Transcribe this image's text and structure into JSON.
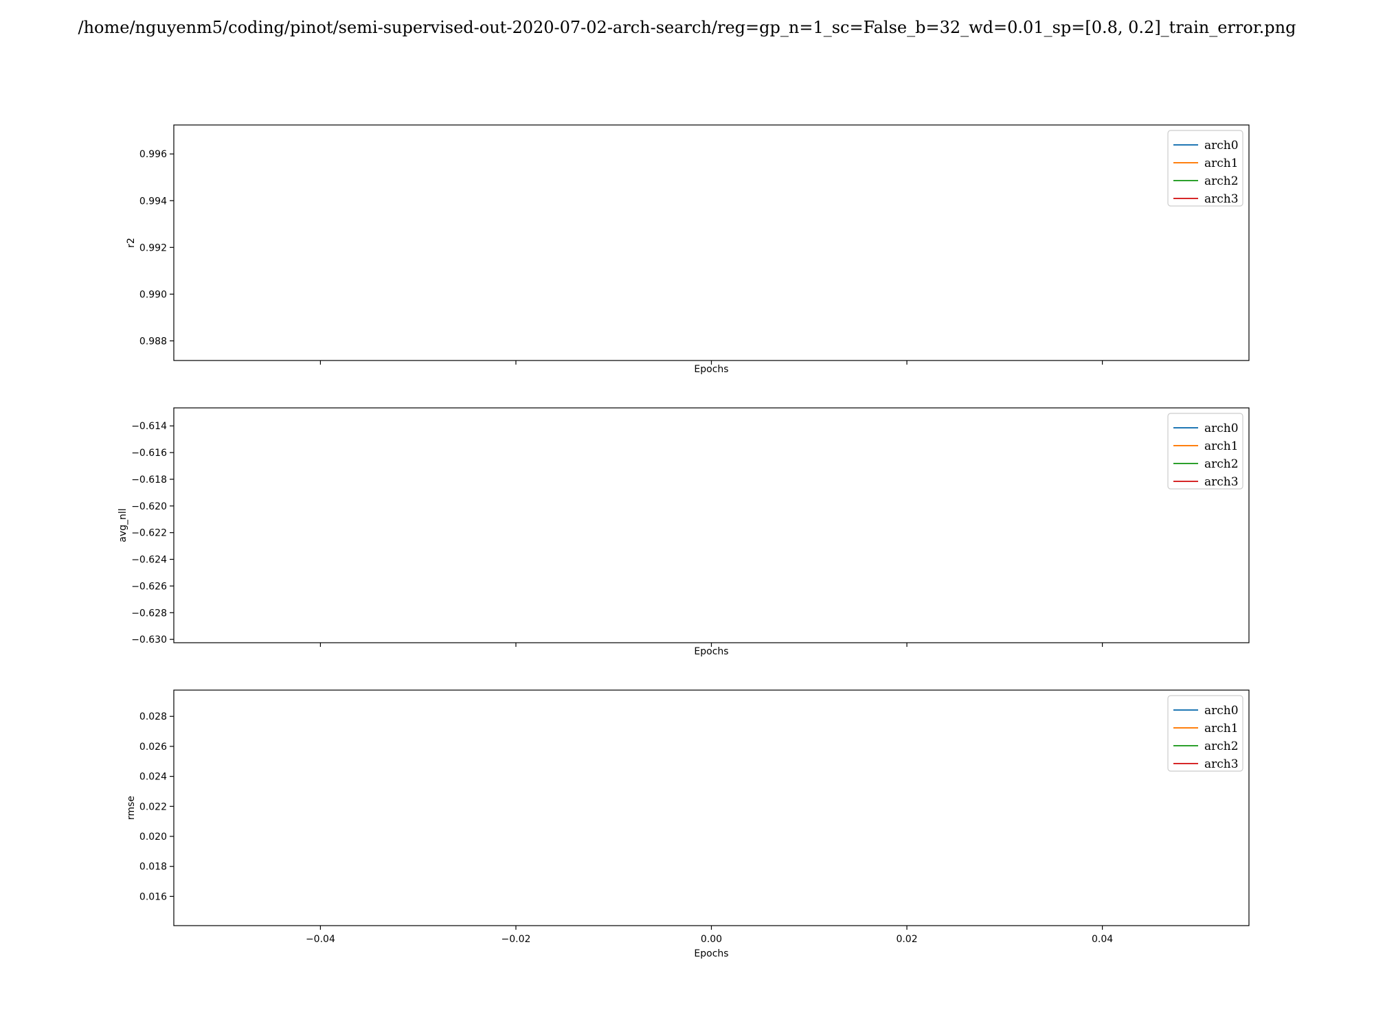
{
  "figure": {
    "title": "/home/nguyenm5/coding/pinot/semi-supervised-out-2020-07-02-arch-search/reg=gp_n=1_sc=False_b=32_wd=0.01_sp=[0.8, 0.2]_train_error.png"
  },
  "chart_data": [
    {
      "type": "line",
      "xlabel": "Epochs",
      "ylabel": "r2",
      "xlim": [
        -0.055,
        0.055
      ],
      "ylim": [
        0.98716,
        0.99724
      ],
      "x_ticks": [],
      "x_tick_positions": [
        -0.04,
        -0.02,
        0.0,
        0.02,
        0.04
      ],
      "y_ticks": [
        "0.988",
        "0.990",
        "0.992",
        "0.994",
        "0.996"
      ],
      "y_tick_values": [
        0.988,
        0.99,
        0.992,
        0.994,
        0.996
      ],
      "legend_position": "upper right",
      "series": [
        {
          "name": "arch0",
          "color": "#1f77b4",
          "x": [],
          "y": []
        },
        {
          "name": "arch1",
          "color": "#ff7f0e",
          "x": [],
          "y": []
        },
        {
          "name": "arch2",
          "color": "#2ca02c",
          "x": [],
          "y": []
        },
        {
          "name": "arch3",
          "color": "#d62728",
          "x": [],
          "y": []
        }
      ]
    },
    {
      "type": "line",
      "xlabel": "Epochs",
      "ylabel": "avg_nll",
      "xlim": [
        -0.055,
        0.055
      ],
      "ylim": [
        -0.63025,
        -0.61265
      ],
      "x_ticks": [],
      "x_tick_positions": [
        -0.04,
        -0.02,
        0.0,
        0.02,
        0.04
      ],
      "y_ticks": [
        "−0.630",
        "−0.628",
        "−0.626",
        "−0.624",
        "−0.622",
        "−0.620",
        "−0.618",
        "−0.616",
        "−0.614"
      ],
      "y_tick_values": [
        -0.63,
        -0.628,
        -0.626,
        -0.624,
        -0.622,
        -0.62,
        -0.618,
        -0.616,
        -0.614
      ],
      "legend_position": "upper right",
      "series": [
        {
          "name": "arch0",
          "color": "#1f77b4",
          "x": [],
          "y": []
        },
        {
          "name": "arch1",
          "color": "#ff7f0e",
          "x": [],
          "y": []
        },
        {
          "name": "arch2",
          "color": "#2ca02c",
          "x": [],
          "y": []
        },
        {
          "name": "arch3",
          "color": "#d62728",
          "x": [],
          "y": []
        }
      ]
    },
    {
      "type": "line",
      "xlabel": "Epochs",
      "ylabel": "rmse",
      "xlim": [
        -0.055,
        0.055
      ],
      "ylim": [
        0.01405,
        0.02975
      ],
      "x_ticks": [
        "−0.04",
        "−0.02",
        "0.00",
        "0.02",
        "0.04"
      ],
      "x_tick_positions": [
        -0.04,
        -0.02,
        0.0,
        0.02,
        0.04
      ],
      "y_ticks": [
        "0.016",
        "0.018",
        "0.020",
        "0.022",
        "0.024",
        "0.026",
        "0.028"
      ],
      "y_tick_values": [
        0.016,
        0.018,
        0.02,
        0.022,
        0.024,
        0.026,
        0.028
      ],
      "legend_position": "upper right",
      "series": [
        {
          "name": "arch0",
          "color": "#1f77b4",
          "x": [],
          "y": []
        },
        {
          "name": "arch1",
          "color": "#ff7f0e",
          "x": [],
          "y": []
        },
        {
          "name": "arch2",
          "color": "#2ca02c",
          "x": [],
          "y": []
        },
        {
          "name": "arch3",
          "color": "#d62728",
          "x": [],
          "y": []
        }
      ]
    }
  ]
}
